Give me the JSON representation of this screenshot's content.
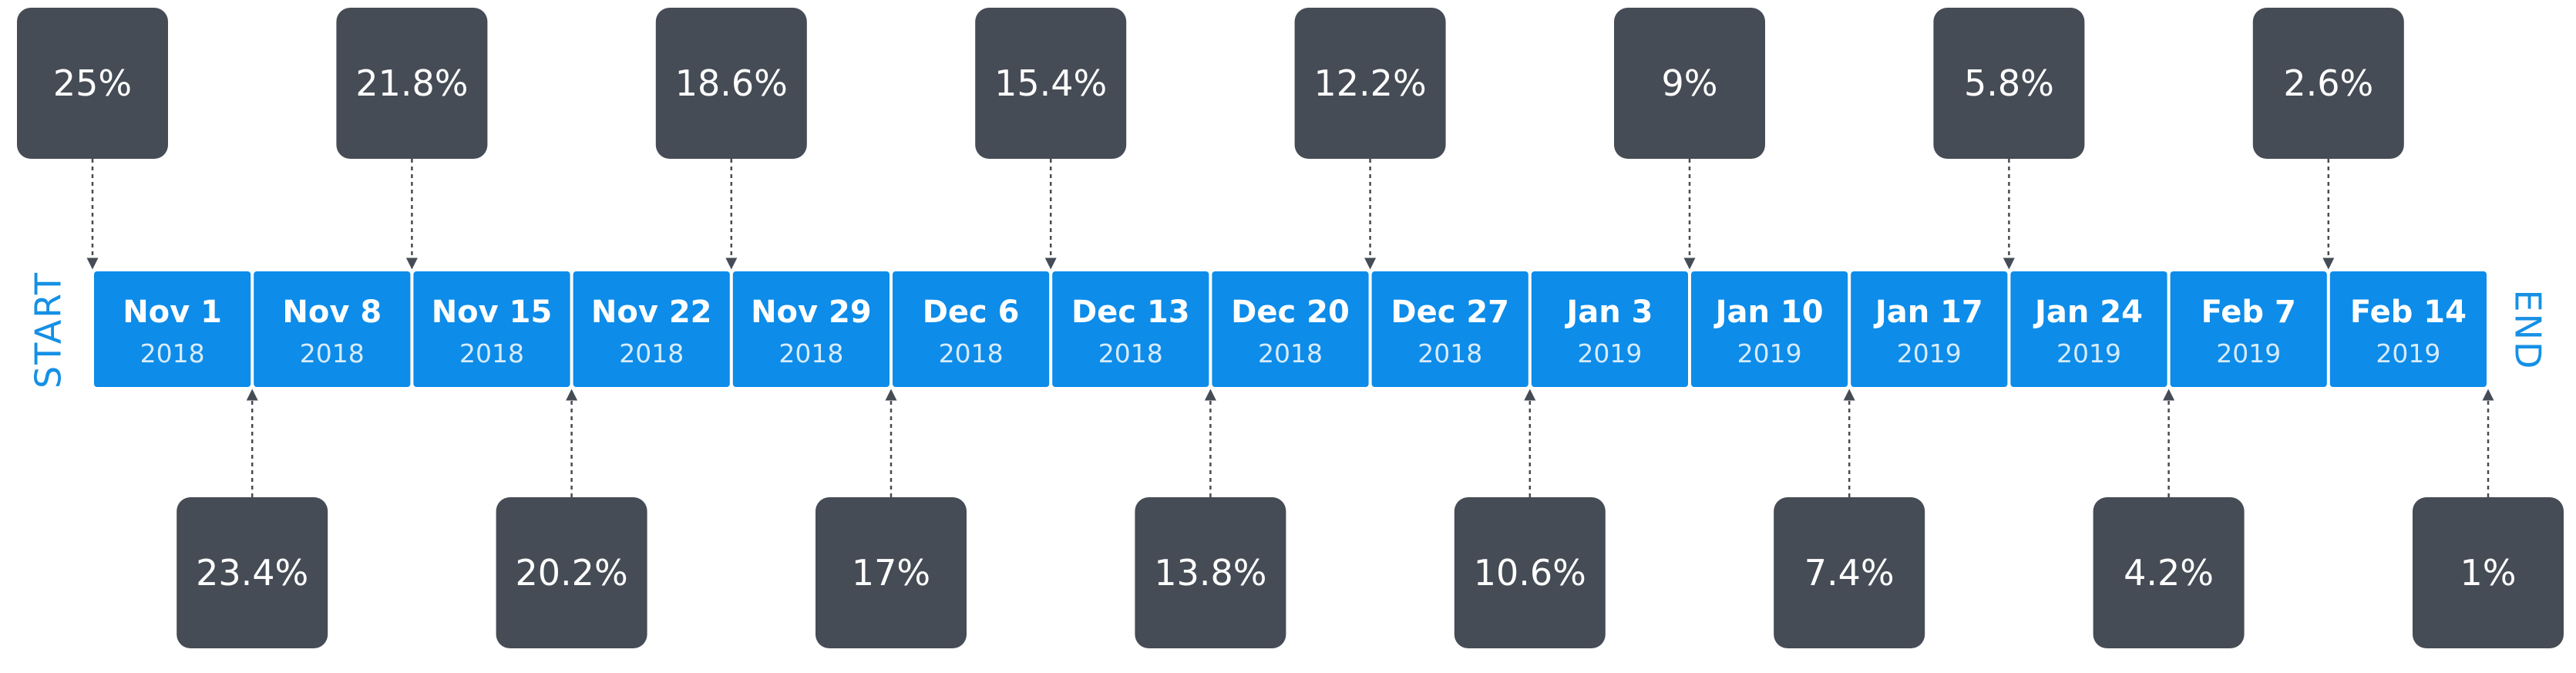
{
  "timeline": {
    "start_label": "START",
    "end_label": "END",
    "colors": {
      "segment": "#0d8ce9",
      "callout": "#464c55",
      "edge_label": "#1590e5",
      "connector": "#464c55"
    },
    "segments": [
      {
        "month": "Nov 1",
        "year": "2018"
      },
      {
        "month": "Nov 8",
        "year": "2018"
      },
      {
        "month": "Nov 15",
        "year": "2018"
      },
      {
        "month": "Nov 22",
        "year": "2018"
      },
      {
        "month": "Nov 29",
        "year": "2018"
      },
      {
        "month": "Dec 6",
        "year": "2018"
      },
      {
        "month": "Dec 13",
        "year": "2018"
      },
      {
        "month": "Dec 20",
        "year": "2018"
      },
      {
        "month": "Dec 27",
        "year": "2018"
      },
      {
        "month": "Jan 3",
        "year": "2019"
      },
      {
        "month": "Jan 10",
        "year": "2019"
      },
      {
        "month": "Jan 17",
        "year": "2019"
      },
      {
        "month": "Jan 24",
        "year": "2019"
      },
      {
        "month": "Feb 7",
        "year": "2019"
      },
      {
        "month": "Feb 14",
        "year": "2019"
      }
    ],
    "top_callouts": [
      "25%",
      "21.8%",
      "18.6%",
      "15.4%",
      "12.2%",
      "9%",
      "5.8%",
      "2.6%"
    ],
    "bottom_callouts": [
      "23.4%",
      "20.2%",
      "17%",
      "13.8%",
      "10.6%",
      "7.4%",
      "4.2%",
      "1%"
    ]
  }
}
